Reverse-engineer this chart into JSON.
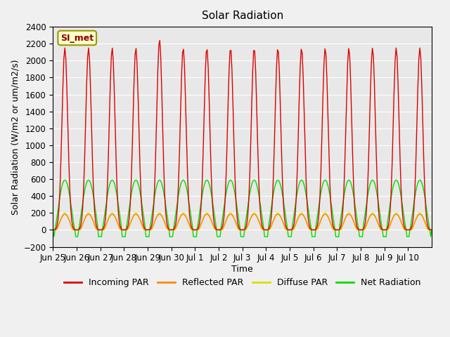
{
  "title": "Solar Radiation",
  "xlabel": "Time",
  "ylabel": "Solar Radiation (W/m2 or um/m2/s)",
  "ylim": [
    -200,
    2400
  ],
  "yticks": [
    -200,
    0,
    200,
    400,
    600,
    800,
    1000,
    1200,
    1400,
    1600,
    1800,
    2000,
    2200,
    2400
  ],
  "background_color": "#e8e8e8",
  "plot_bg_color": "#e0e0e0",
  "annotation_text": "SI_met",
  "annotation_bg": "#ffffcc",
  "annotation_border": "#cccc00",
  "colors": {
    "incoming": "#dd0000",
    "reflected": "#ff8800",
    "diffuse": "#dddd00",
    "net": "#00dd00"
  },
  "num_days": 16,
  "day_hours": 24,
  "incoming_peak": 2150,
  "incoming_peak_special": 2250,
  "reflected_peak": 185,
  "diffuse_peak": 200,
  "net_peak": 590,
  "net_negative": -80,
  "start_label": "Jun 25",
  "x_labels": [
    "Jun 25",
    "Jun 26",
    "Jun 27",
    "Jun 28",
    "Jun 29",
    "Jun 30",
    "Jul 1",
    "Jul 2",
    "Jul 3",
    "Jul 4",
    "Jul 5",
    "Jul 6",
    "Jul 7",
    "Jul 8",
    "Jul 9",
    "Jul 10"
  ]
}
